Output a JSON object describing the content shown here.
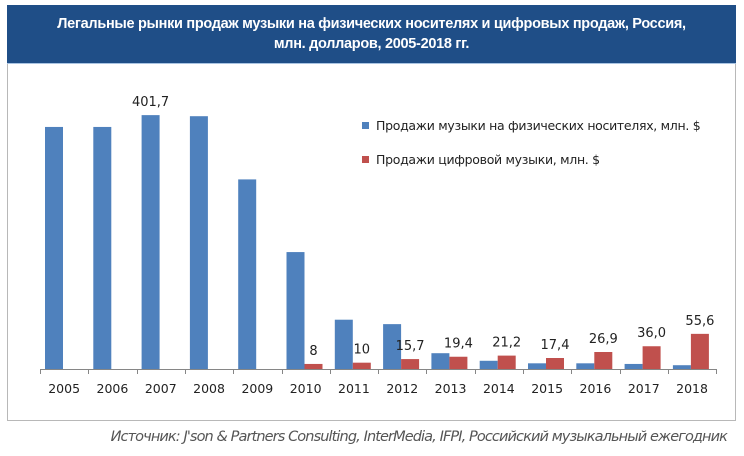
{
  "title": {
    "line1": "Легальные рынки продаж музыки на физических носителях и цифровых продаж,  Россия,",
    "line2": "млн. долларов, 2005-2018 гг."
  },
  "legend": {
    "items": [
      {
        "label": "Продажи музыки на физических носителях, млн. $",
        "color": "#4f81bd"
      },
      {
        "label": "Продажи цифровой музыки, млн. $",
        "color": "#c0504d"
      }
    ]
  },
  "source": "Источник: J'son & Partners Consulting, InterMedia, IFPI, Российский музыкальный ежегодник",
  "colors": {
    "title_bg": "#1f4e87",
    "physical": "#4f81bd",
    "digital": "#c0504d",
    "axis": "#868686"
  },
  "chart_data": {
    "type": "bar",
    "title": "Легальные рынки продаж музыки на физических носителях и цифровых продаж, Россия, млн. долларов, 2005-2018 гг.",
    "xlabel": "",
    "ylabel": "",
    "ylim": [
      0,
      420
    ],
    "grid": false,
    "legend_position": "right-top inside",
    "categories": [
      "2005",
      "2006",
      "2007",
      "2008",
      "2009",
      "2010",
      "2011",
      "2012",
      "2013",
      "2014",
      "2015",
      "2016",
      "2017",
      "2018"
    ],
    "series": [
      {
        "name": "Продажи музыки на физических носителях, млн. $",
        "color": "#4f81bd",
        "values": [
          383,
          383,
          401.7,
          400,
          300,
          185,
          78,
          71,
          25,
          13,
          9,
          9,
          8,
          6
        ],
        "data_labels": [
          "",
          "",
          "401,7",
          "",
          "",
          "",
          "",
          "",
          "",
          "",
          "",
          "",
          "",
          ""
        ]
      },
      {
        "name": "Продажи цифровой музыки, млн. $",
        "color": "#c0504d",
        "values": [
          0,
          0,
          0,
          0,
          0,
          8,
          10,
          15.7,
          19.4,
          21.2,
          17.4,
          26.9,
          36.0,
          55.6
        ],
        "data_labels": [
          "",
          "",
          "",
          "",
          "",
          "8",
          "10",
          "15,7",
          "19,4",
          "21,2",
          "17,4",
          "26,9",
          "36,0",
          "55,6"
        ]
      }
    ],
    "annotations": [
      "Источник: J'son & Partners Consulting, InterMedia, IFPI, Российский музыкальный ежегодник"
    ]
  }
}
